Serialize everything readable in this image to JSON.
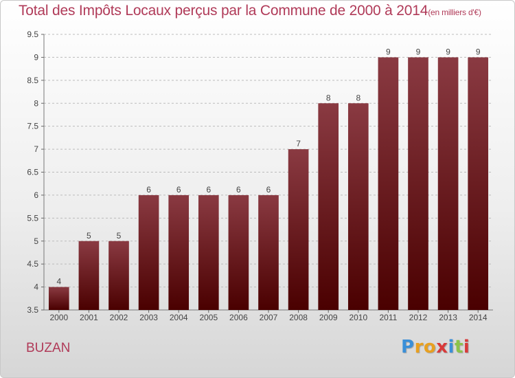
{
  "title": "Total des Impôts Locaux perçus par la Commune de 2000 à 2014",
  "unit_note": "(en milliers d'€)",
  "commune": "BUZAN",
  "logo_text": "Proxiti",
  "colors": {
    "title": "#b03a58",
    "bar_top": "#8a3a42",
    "bar_bottom": "#4a0000",
    "grid": "#bbbbbb"
  },
  "chart_data": {
    "type": "bar",
    "title": "Total des Impôts Locaux perçus par la Commune de 2000 à 2014",
    "xlabel": "",
    "ylabel": "",
    "categories": [
      "2000",
      "2001",
      "2002",
      "2003",
      "2004",
      "2005",
      "2006",
      "2007",
      "2008",
      "2009",
      "2010",
      "2011",
      "2012",
      "2013",
      "2014"
    ],
    "values": [
      4,
      5,
      5,
      6,
      6,
      6,
      6,
      6,
      7,
      8,
      8,
      9,
      9,
      9,
      9
    ],
    "ylim": [
      3.5,
      9.5
    ],
    "yticks": [
      "3.5",
      "4",
      "4.5",
      "5",
      "5.5",
      "6",
      "6.5",
      "7",
      "7.5",
      "8",
      "8.5",
      "9",
      "9.5"
    ],
    "grid": true,
    "grid_style": "dashed horizontal"
  }
}
